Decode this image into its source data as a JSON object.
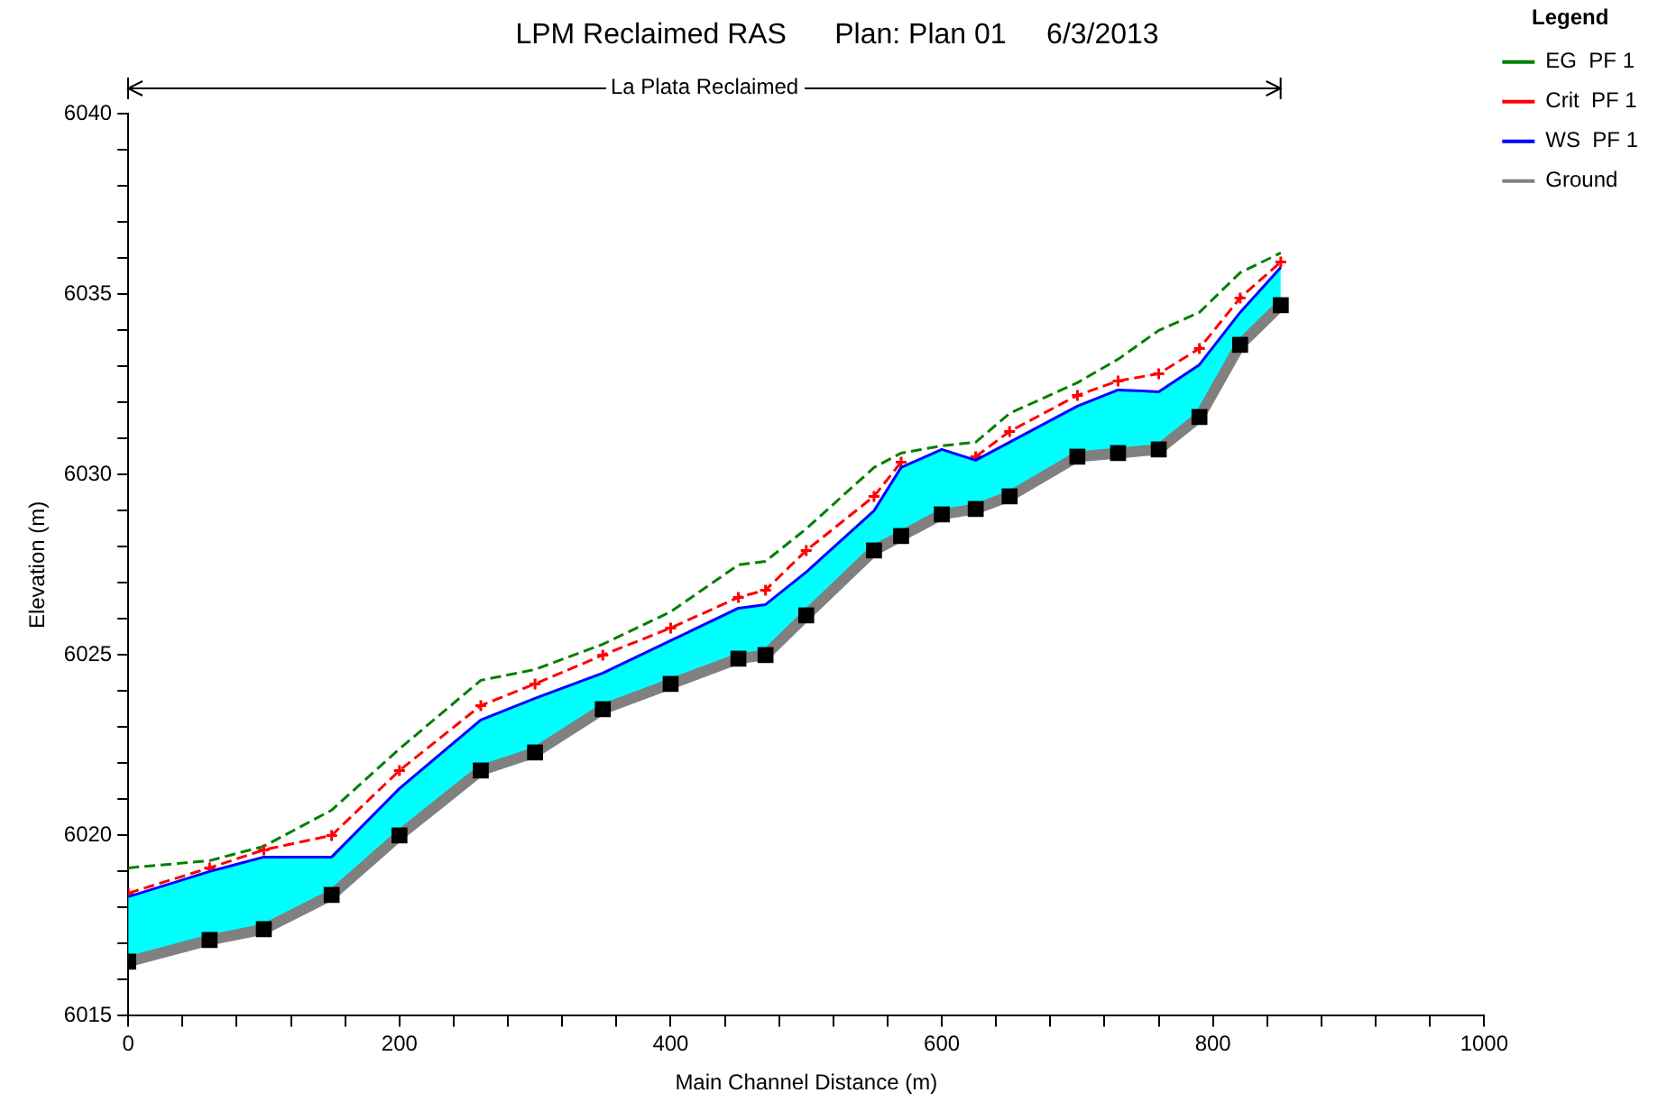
{
  "chart_data": {
    "type": "line",
    "title": "LPM Reclaimed RAS      Plan: Plan 01     6/3/2013",
    "xlabel": "Main Channel Distance (m)",
    "ylabel": "Elevation (m)",
    "legend_title": "Legend",
    "legend": "top right",
    "grid": false,
    "annotations": [
      "La Plata Reclaimed"
    ],
    "x": [
      0,
      60,
      100,
      150,
      200,
      260,
      300,
      350,
      400,
      450,
      470,
      500,
      550,
      570,
      600,
      625,
      650,
      700,
      730,
      760,
      790,
      820,
      850
    ],
    "xlim": [
      0,
      1000
    ],
    "xticks": [
      0,
      {
        "value": 40,
        "label": null
      },
      {
        "value": 80,
        "label": null
      },
      {
        "value": 120,
        "label": null
      },
      {
        "value": 160,
        "label": null
      },
      200,
      {
        "value": 240,
        "label": null
      },
      {
        "value": 280,
        "label": null
      },
      {
        "value": 320,
        "label": null
      },
      {
        "value": 360,
        "label": null
      },
      400,
      {
        "value": 440,
        "label": null
      },
      {
        "value": 480,
        "label": null
      },
      {
        "value": 520,
        "label": null
      },
      {
        "value": 560,
        "label": null
      },
      600,
      {
        "value": 640,
        "label": null
      },
      {
        "value": 680,
        "label": null
      },
      {
        "value": 720,
        "label": null
      },
      {
        "value": 760,
        "label": null
      },
      800,
      {
        "value": 840,
        "label": null
      },
      {
        "value": 880,
        "label": null
      },
      {
        "value": 920,
        "label": null
      },
      {
        "value": 960,
        "label": null
      },
      1000
    ],
    "ylim": [
      6015,
      6040
    ],
    "yticks": [
      6015,
      {
        "value": 6016,
        "label": null
      },
      {
        "value": 6017,
        "label": null
      },
      {
        "value": 6018,
        "label": null
      },
      {
        "value": 6019,
        "label": null
      },
      6020,
      {
        "value": 6021,
        "label": null
      },
      {
        "value": 6022,
        "label": null
      },
      {
        "value": 6023,
        "label": null
      },
      {
        "value": 6024,
        "label": null
      },
      6025,
      {
        "value": 6026,
        "label": null
      },
      {
        "value": 6027,
        "label": null
      },
      {
        "value": 6028,
        "label": null
      },
      {
        "value": 6029,
        "label": null
      },
      6030,
      {
        "value": 6031,
        "label": null
      },
      {
        "value": 6032,
        "label": null
      },
      {
        "value": 6033,
        "label": null
      },
      {
        "value": 6034,
        "label": null
      },
      6035,
      {
        "value": 6036,
        "label": null
      },
      {
        "value": 6037,
        "label": null
      },
      {
        "value": 6038,
        "label": null
      },
      {
        "value": 6039,
        "label": null
      },
      6040
    ],
    "series": [
      {
        "name": "EG  PF 1",
        "type": "line",
        "color": "#008000",
        "line_style": "dashed",
        "marker": "none",
        "values": [
          6019.1,
          6019.3,
          6019.7,
          6020.7,
          6022.4,
          6024.3,
          6024.6,
          6025.3,
          6026.2,
          6027.5,
          6027.6,
          6028.5,
          6030.2,
          6030.6,
          6030.8,
          6030.9,
          6031.7,
          6032.55,
          6033.2,
          6034.0,
          6034.5,
          6035.6,
          6036.15
        ]
      },
      {
        "name": "Crit  PF 1",
        "type": "line",
        "color": "#ff0000",
        "line_style": "dashed",
        "marker": "cross",
        "values": [
          6018.4,
          6019.1,
          6019.6,
          6020.0,
          6021.8,
          6023.6,
          6024.2,
          6025.0,
          6025.75,
          6026.6,
          6026.8,
          6027.9,
          6029.4,
          6030.35,
          null,
          6030.5,
          6031.2,
          6032.2,
          6032.6,
          6032.8,
          6033.5,
          6034.9,
          6035.9
        ]
      },
      {
        "name": "WS  PF 1",
        "type": "area",
        "color": "#0000ff",
        "line_style": "solid",
        "marker": "none",
        "values": [
          6018.3,
          6019.0,
          6019.4,
          6019.4,
          6021.3,
          6023.2,
          6023.8,
          6024.5,
          6025.4,
          6026.3,
          6026.4,
          6027.3,
          6029.0,
          6030.2,
          6030.7,
          6030.4,
          6030.9,
          6031.9,
          6032.35,
          6032.3,
          6033.05,
          6034.5,
          6035.75
        ]
      },
      {
        "name": "Ground",
        "type": "line",
        "color": "#808080",
        "line_style": "solid",
        "marker": "square",
        "values": [
          6016.5,
          6017.1,
          6017.4,
          6018.35,
          6020.0,
          6021.8,
          6022.3,
          6023.5,
          6024.2,
          6024.9,
          6025.0,
          6026.1,
          6027.9,
          6028.3,
          6028.9,
          6029.05,
          6029.4,
          6030.5,
          6030.6,
          6030.7,
          6031.6,
          6033.6,
          6034.7
        ]
      }
    ]
  }
}
